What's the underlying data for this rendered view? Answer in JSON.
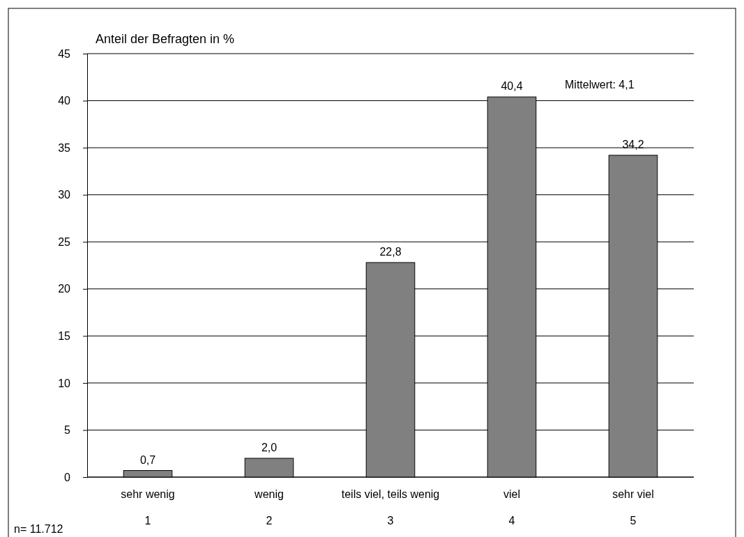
{
  "chart_data": {
    "type": "bar",
    "ylabel": "Anteil der Befragten in %",
    "categories": [
      "sehr wenig\n1",
      "wenig\n2",
      "teils viel, teils wenig\n3",
      "viel\n4",
      "sehr viel\n5"
    ],
    "values": [
      0.7,
      2.0,
      22.8,
      40.4,
      34.2
    ],
    "value_labels": [
      "0,7",
      "2,0",
      "22,8",
      "40,4",
      "34,2"
    ],
    "color": "#808080",
    "ylim": [
      0,
      45
    ],
    "yticks": [
      0,
      5,
      10,
      15,
      20,
      25,
      30,
      35,
      40,
      45
    ],
    "grid": "y",
    "annotations": [
      "Mittelwert: 4,1",
      "n= 11.712"
    ]
  }
}
